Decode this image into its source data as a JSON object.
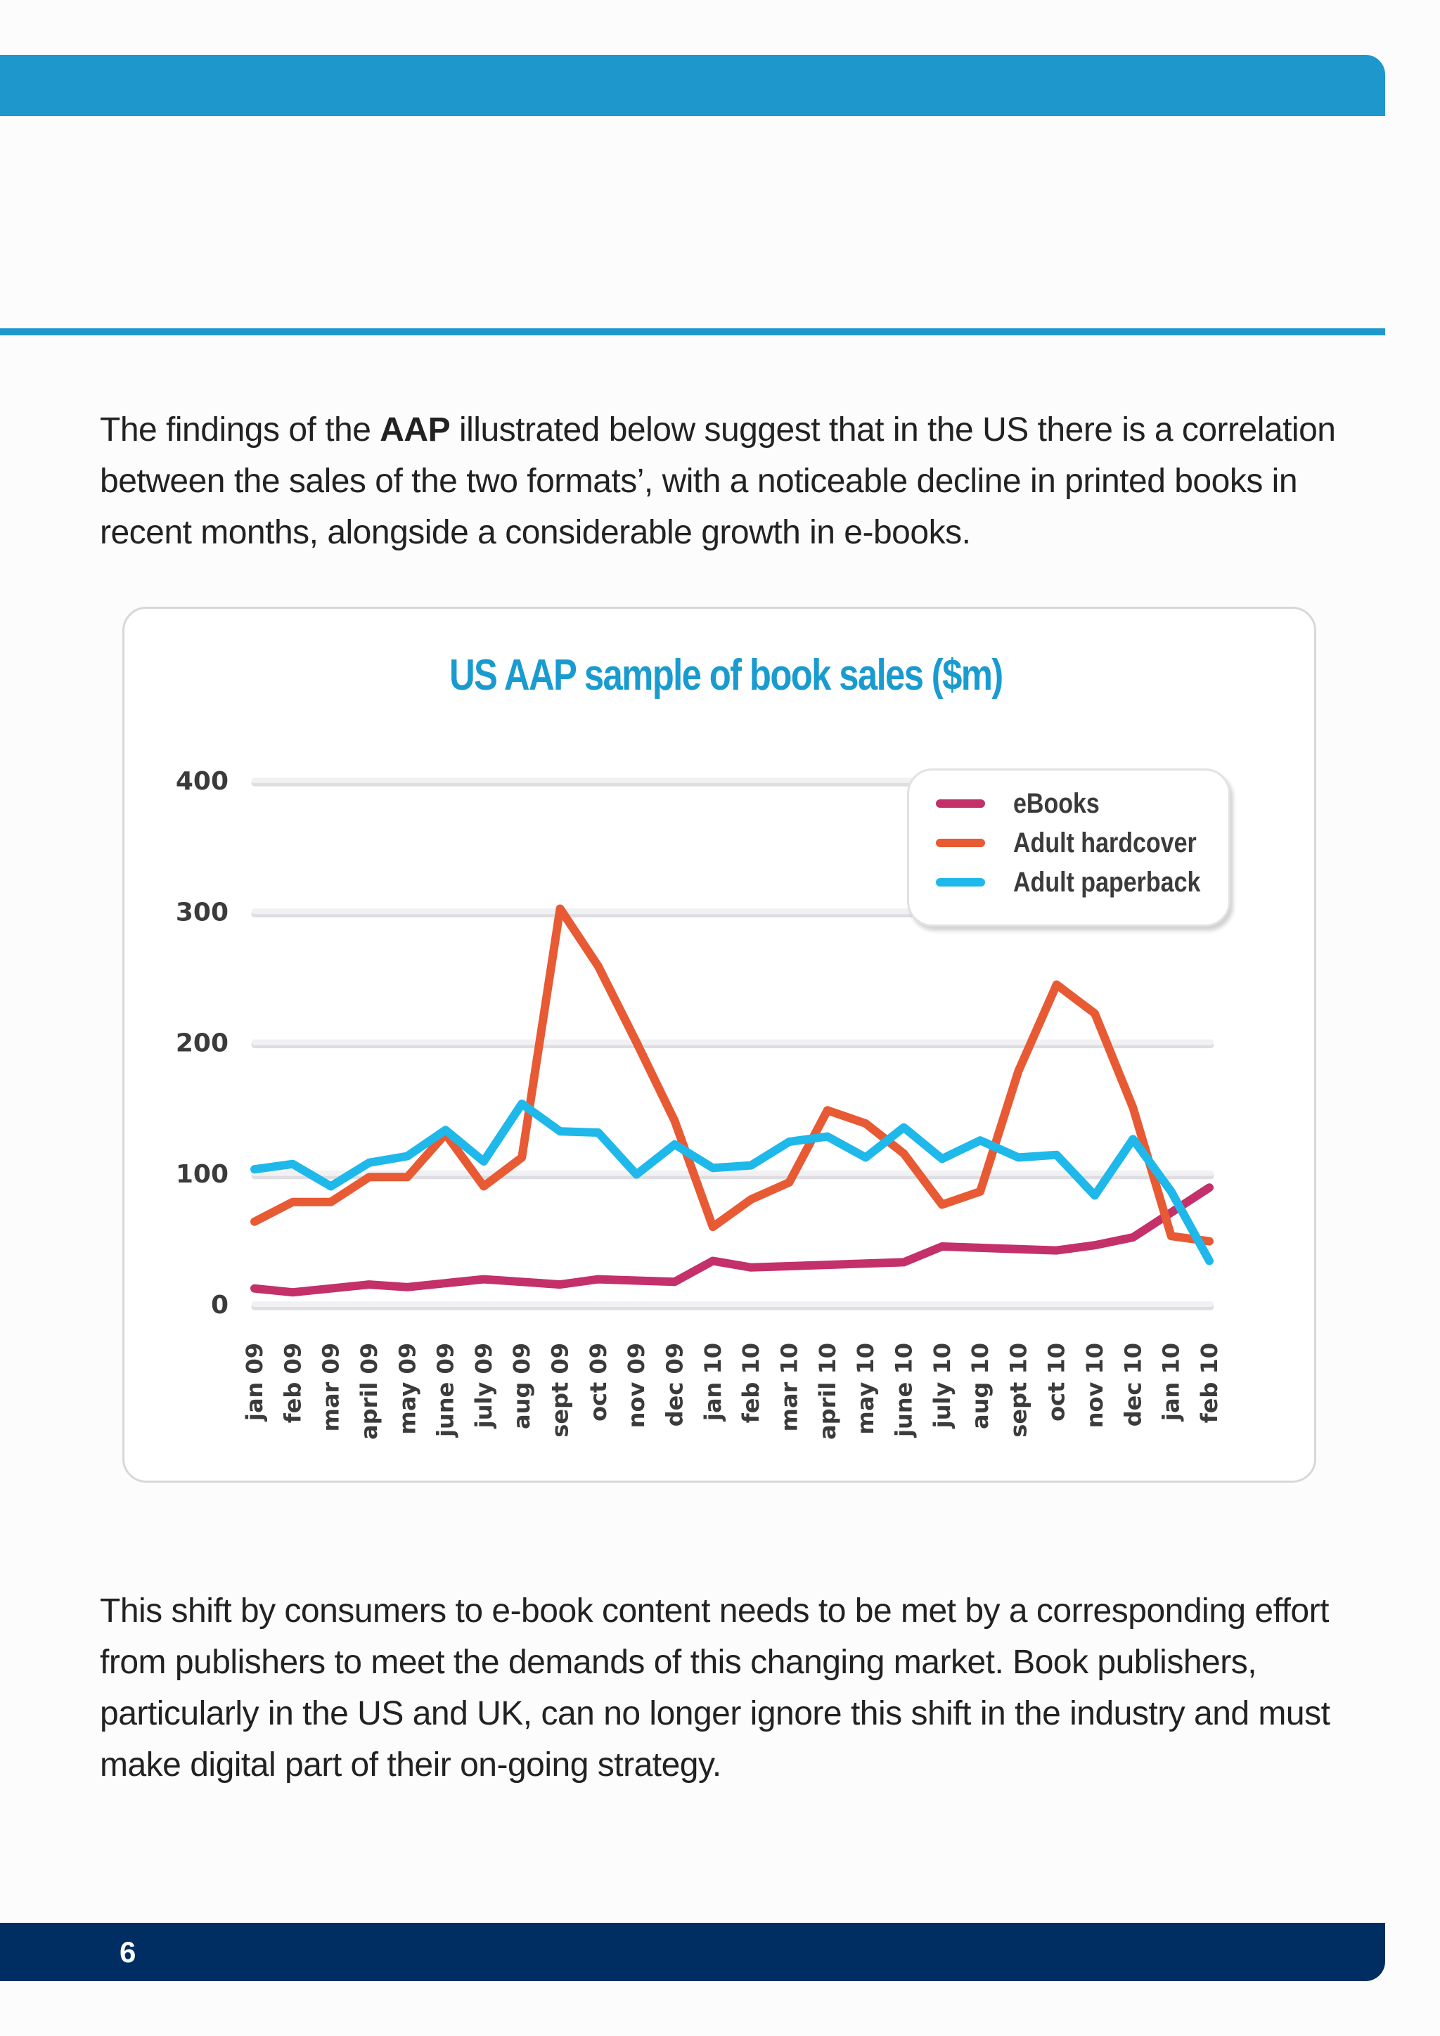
{
  "page": {
    "paragraph1": {
      "before": "The findings of the ",
      "bold": "AAP",
      "after": " illustrated below suggest that in the US there is a correlation between the sales of the two formats’, with a noticeable decline in printed books in recent months, alongside a considerable growth in e-books."
    },
    "paragraph2": "This shift by consumers to e-book content needs to be met by a corresponding effort from publishers to meet the demands of this changing market. Book publishers, particularly in the US and UK, can no longer ignore this shift in the industry and must make digital part of their on-going strategy.",
    "page_number": "6",
    "colors": {
      "header_band": "#1e97cc",
      "footer_band": "#002e63",
      "title": "#1a9bd0"
    }
  },
  "chart_data": {
    "type": "line",
    "title": "US AAP sample of book sales ($m)",
    "xlabel": "",
    "ylabel": "",
    "ylim": [
      0,
      400
    ],
    "yticks": [
      0,
      100,
      200,
      300,
      400
    ],
    "grid": true,
    "legend_position": "top-right",
    "categories": [
      "jan 09",
      "feb 09",
      "mar 09",
      "april 09",
      "may 09",
      "june 09",
      "july 09",
      "aug 09",
      "sept 09",
      "oct 09",
      "nov 09",
      "dec 09",
      "jan 10",
      "feb 10",
      "mar 10",
      "april 10",
      "may 10",
      "june 10",
      "july 10",
      "aug 10",
      "sept 10",
      "oct 10",
      "nov 10",
      "dec 10",
      "jan 10",
      "feb 10"
    ],
    "series": [
      {
        "name": "eBooks",
        "color": "#c4306a",
        "values": [
          12,
          9,
          12,
          15,
          13,
          16,
          19,
          17,
          15,
          19,
          18,
          17,
          33,
          28,
          29,
          30,
          31,
          32,
          44,
          43,
          42,
          41,
          45,
          51,
          70,
          89
        ]
      },
      {
        "name": "Adult hardcover",
        "color": "#e85a33",
        "values": [
          63,
          78,
          78,
          97,
          97,
          130,
          90,
          112,
          302,
          258,
          200,
          140,
          59,
          80,
          93,
          148,
          138,
          115,
          76,
          86,
          178,
          244,
          222,
          150,
          52,
          48
        ]
      },
      {
        "name": "Adult paperback",
        "color": "#1fb8ea",
        "values": [
          103,
          107,
          90,
          108,
          113,
          133,
          109,
          153,
          132,
          131,
          99,
          122,
          104,
          106,
          124,
          128,
          112,
          135,
          111,
          125,
          112,
          114,
          83,
          126,
          86,
          33
        ]
      }
    ]
  }
}
